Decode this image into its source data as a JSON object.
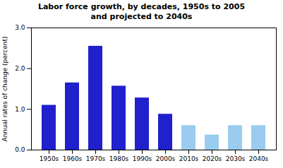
{
  "chart_data": {
    "type": "bar",
    "title": "Labor force growth, by decades, 1950s to 2005\nand projected to 2040s",
    "categories": [
      "1950s",
      "1960s",
      "1970s",
      "1980s",
      "1990s",
      "2000s",
      "2010s",
      "2020s",
      "2030s",
      "2040s"
    ],
    "values": [
      1.1,
      1.65,
      2.55,
      1.57,
      1.28,
      0.88,
      0.6,
      0.37,
      0.6,
      0.6
    ],
    "colors": [
      "#2020cc",
      "#2020cc",
      "#2020cc",
      "#2020cc",
      "#2020cc",
      "#2020cc",
      "#99ccee",
      "#99ccee",
      "#99ccee",
      "#99ccee"
    ],
    "ylabel": "Annual rates of change (percent)",
    "ylim": [
      0,
      3
    ],
    "yticks": [
      0,
      1,
      2,
      3
    ],
    "grid": false
  }
}
